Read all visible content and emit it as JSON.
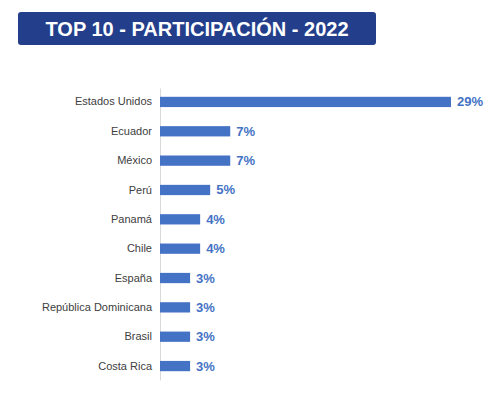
{
  "chart_data": {
    "type": "bar",
    "title": "TOP 10 - PARTICIPACIÓN - 2022",
    "orientation": "horizontal",
    "categories": [
      "Estados Unidos",
      "Ecuador",
      "México",
      "Perú",
      "Panamá",
      "Chile",
      "España",
      "República Dominicana",
      "Brasil",
      "Costa Rica"
    ],
    "values": [
      29,
      7,
      7,
      5,
      4,
      4,
      3,
      3,
      3,
      3
    ],
    "value_labels": [
      "29%",
      "7%",
      "7%",
      "5%",
      "4%",
      "4%",
      "3%",
      "3%",
      "3%",
      "3%"
    ],
    "color": "#4472c4",
    "data_labels": true,
    "tick_labels": "y",
    "grid": false
  }
}
